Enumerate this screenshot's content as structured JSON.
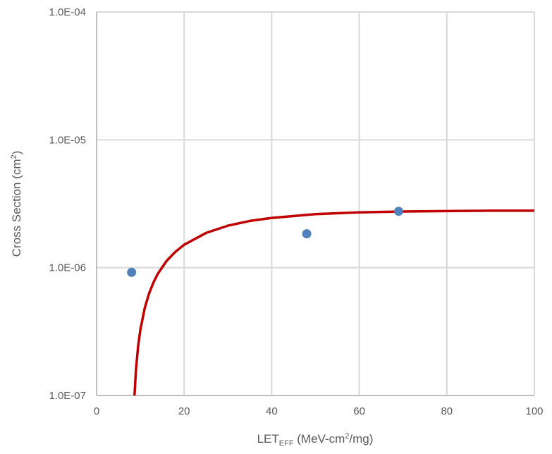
{
  "chart_data": {
    "type": "scatter",
    "xlabel": {
      "main": "LET",
      "sub": "EFF",
      "rest": " (MeV-cm",
      "sup": "2",
      "end": "/mg)"
    },
    "ylabel": {
      "main": "Cross Section (cm",
      "sup": "2",
      "end": ")"
    },
    "xlim": [
      0,
      100
    ],
    "ylim": [
      1e-07,
      0.0001
    ],
    "yscale": "log",
    "grid": true,
    "x_ticks": [
      "0",
      "20",
      "40",
      "60",
      "80",
      "100"
    ],
    "y_ticks": [
      "1.0E-07",
      "1.0E-06",
      "1.0E-05",
      "1.0E-04"
    ],
    "series": [
      {
        "type": "scatter",
        "color": "#4F81BD",
        "x": [
          8,
          48,
          69
        ],
        "y": [
          9.2e-07,
          1.84e-06,
          2.76e-06
        ]
      },
      {
        "type": "line",
        "color": "#C00000",
        "x": [
          8.66,
          9,
          9.5,
          10,
          11,
          12,
          13,
          14,
          16,
          18,
          20,
          25,
          30,
          35,
          40,
          50,
          60,
          70,
          80,
          90,
          100
        ],
        "y": [
          1e-07,
          1.6e-07,
          2.45e-07,
          3.27e-07,
          4.83e-07,
          6.3e-07,
          7.67e-07,
          8.96e-07,
          1.13e-06,
          1.33e-06,
          1.51e-06,
          1.87e-06,
          2.13e-06,
          2.32e-06,
          2.45e-06,
          2.62e-06,
          2.71e-06,
          2.75e-06,
          2.77e-06,
          2.79e-06,
          2.79e-06
        ]
      }
    ]
  }
}
